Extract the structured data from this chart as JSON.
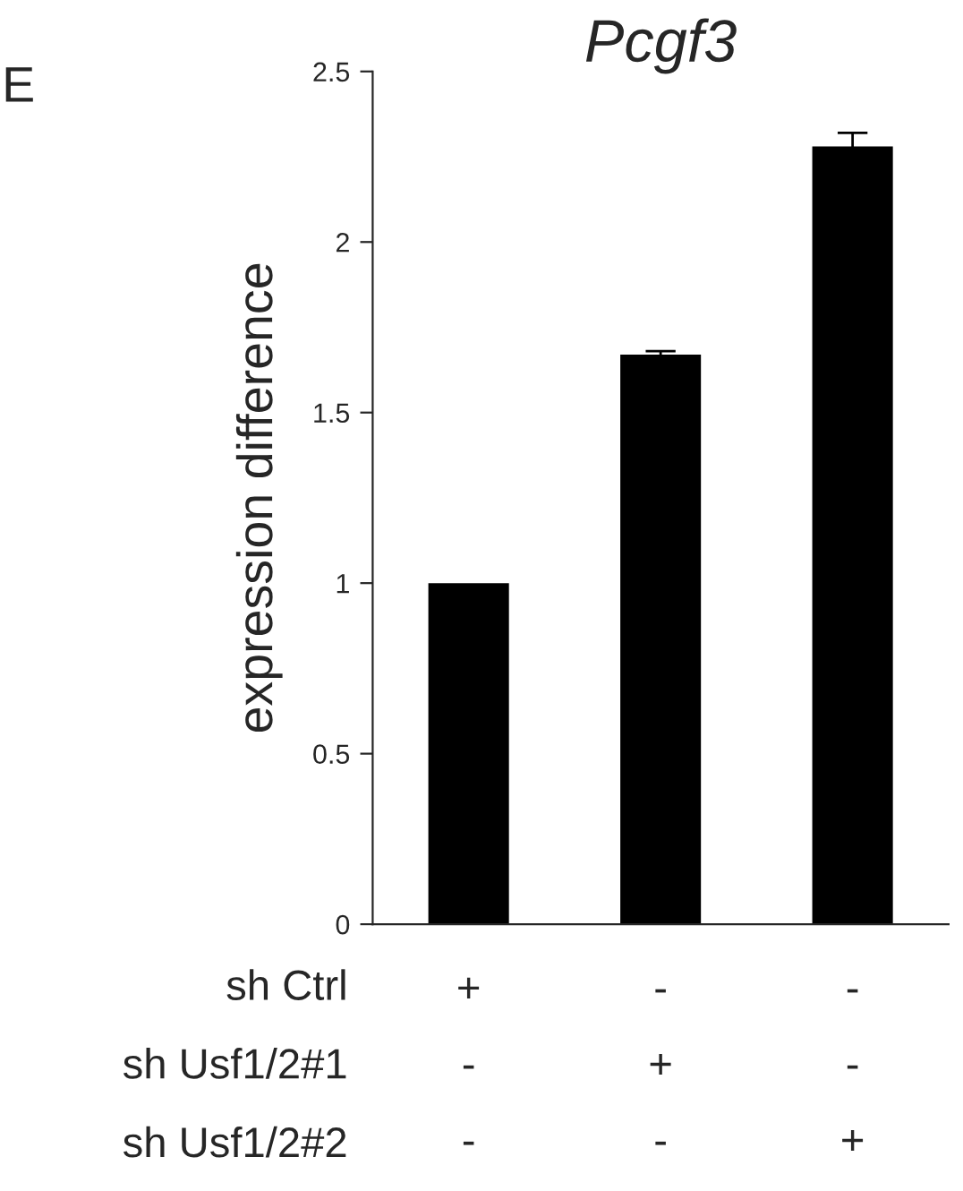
{
  "chart_data": {
    "type": "bar",
    "title": "Pcgf3",
    "ylabel": "expression difference",
    "categories": [
      "+\n-\n-",
      "-\n+\n-",
      "-\n-\n+"
    ],
    "values": [
      1.0,
      1.67,
      2.28
    ],
    "errors": [
      null,
      0.01,
      0.04
    ],
    "color": "#000000",
    "ylim": [
      0,
      2.5
    ],
    "yticks": [
      0,
      0.5,
      1,
      1.5,
      2,
      2.5
    ],
    "grid": false,
    "annotations": [
      "E",
      "sh Ctrl",
      "sh Usf1/2#1",
      "sh Usf1/2#2"
    ]
  }
}
